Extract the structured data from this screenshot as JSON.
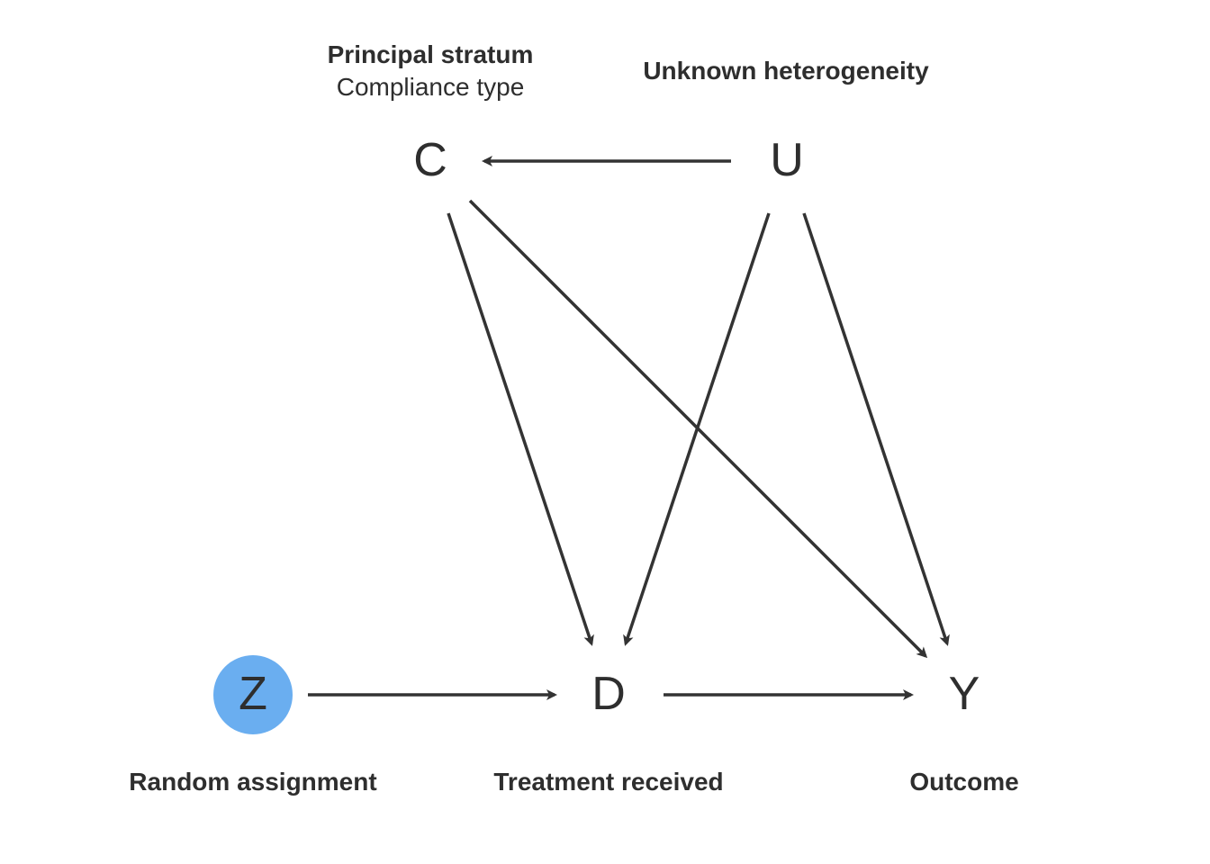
{
  "colors": {
    "ink": "#2e2e2e",
    "edge": "#333333",
    "highlight_fill": "#6aaef0"
  },
  "nodes": {
    "C": {
      "letter": "C"
    },
    "U": {
      "letter": "U"
    },
    "Z": {
      "letter": "Z",
      "highlighted": true
    },
    "D": {
      "letter": "D"
    },
    "Y": {
      "letter": "Y"
    }
  },
  "labels": {
    "C_title": "Principal stratum",
    "C_subtitle": "Compliance type",
    "U_title": "Unknown heterogeneity",
    "Z_title": "Random assignment",
    "D_title": "Treatment received",
    "Y_title": "Outcome"
  },
  "edges": [
    {
      "from": "U",
      "to": "C"
    },
    {
      "from": "C",
      "to": "D"
    },
    {
      "from": "C",
      "to": "Y"
    },
    {
      "from": "U",
      "to": "D"
    },
    {
      "from": "U",
      "to": "Y"
    },
    {
      "from": "Z",
      "to": "D"
    },
    {
      "from": "D",
      "to": "Y"
    }
  ]
}
